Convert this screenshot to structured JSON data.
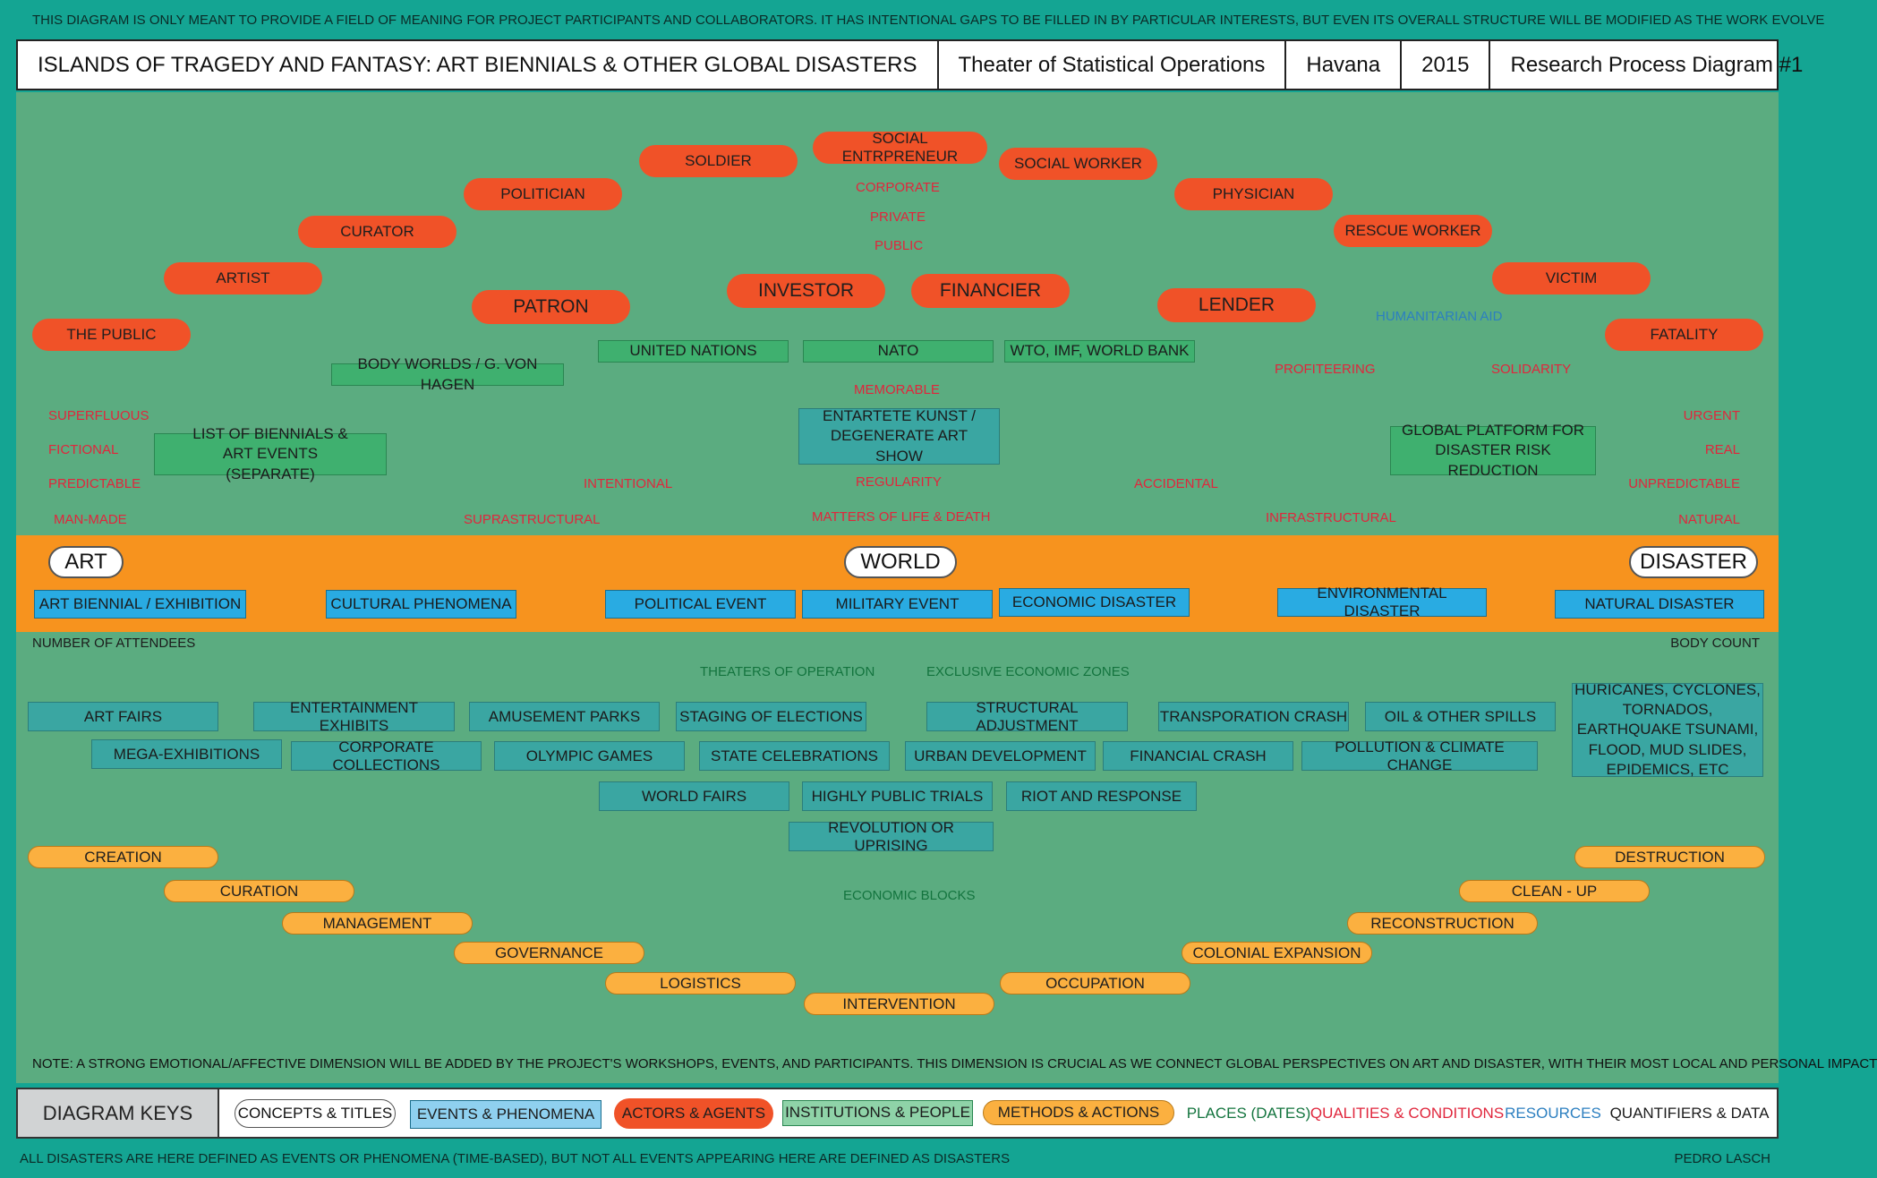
{
  "top_note": "THIS DIAGRAM IS ONLY MEANT TO PROVIDE A FIELD OF MEANING FOR PROJECT PARTICIPANTS AND COLLABORATORS. IT HAS INTENTIONAL GAPS TO BE FILLED IN BY PARTICULAR INTERESTS, BUT EVEN ITS OVERALL STRUCTURE WILL BE MODIFIED AS THE WORK EVOLVE",
  "header": {
    "title": "ISLANDS OF TRAGEDY AND FANTASY: ART BIENNIALS & OTHER GLOBAL DISASTERS",
    "theater": "Theater of Statistical Operations",
    "place": "Havana",
    "year": "2015",
    "diagram": "Research Process Diagram #1"
  },
  "actors": {
    "the_public": "THE PUBLIC",
    "artist": "ARTIST",
    "curator": "CURATOR",
    "politician": "POLITICIAN",
    "soldier": "SOLDIER",
    "social_entrepreneur": "SOCIAL ENTRPRENEUR",
    "social_worker": "SOCIAL WORKER",
    "physician": "PHYSICIAN",
    "rescue_worker": "RESCUE WORKER",
    "victim": "VICTIM",
    "fatality": "FATALITY",
    "patron": "PATRON",
    "investor": "INVESTOR",
    "financier": "FINANCIER",
    "lender": "LENDER"
  },
  "qualities": {
    "corporate": "CORPORATE",
    "private": "PRIVATE",
    "public": "PUBLIC",
    "memorable": "MEMORABLE",
    "regularity": "REGULARITY",
    "matters": "MATTERS OF LIFE & DEATH",
    "superfluous": "SUPERFLUOUS",
    "fictional": "FICTIONAL",
    "predictable": "PREDICTABLE",
    "man_made": "MAN-MADE",
    "intentional": "INTENTIONAL",
    "suprastructural": "SUPRASTRUCTURAL",
    "accidental": "ACCIDENTAL",
    "infrastructural": "INFRASTRUCTURAL",
    "profiteering": "PROFITEERING",
    "solidarity": "SOLIDARITY",
    "urgent": "URGENT",
    "real": "REAL",
    "unpredictable": "UNPREDICTABLE",
    "natural": "NATURAL"
  },
  "resources": {
    "humanitarian_aid": "HUMANITARIAN AID"
  },
  "institutions": {
    "united_nations": "UNITED NATIONS",
    "nato": "NATO",
    "wto": "WTO, IMF, WORLD BANK",
    "body_worlds": "BODY WORLDS / G. VON HAGEN",
    "biennials_list": "LIST OF BIENNIALS & ART EVENTS (SEPARATE)",
    "global_platform": "GLOBAL PLATFORM FOR DISASTER RISK REDUCTION"
  },
  "entartete": "ENTARTETE KUNST / DEGENERATE ART SHOW",
  "concepts": {
    "art": "ART",
    "world": "WORLD",
    "disaster": "DISASTER"
  },
  "events_main": {
    "art_biennial": "ART BIENNIAL  / EXHIBITION",
    "cultural": "CULTURAL PHENOMENA",
    "political": "POLITICAL EVENT",
    "military": "MILITARY EVENT",
    "economic": "ECONOMIC DISASTER",
    "environmental": "ENVIRONMENTAL DISASTER",
    "natural": "NATURAL DISASTER"
  },
  "quantifiers": {
    "attendees": "NUMBER OF ATTENDEES",
    "body_count": "BODY COUNT"
  },
  "places": {
    "theaters": "THEATERS OF OPERATION",
    "eez": "EXCLUSIVE ECONOMIC ZONES",
    "blocks": "ECONOMIC BLOCKS"
  },
  "phenomena": {
    "art_fairs": "ART FAIRS",
    "entertainment": "ENTERTAINMENT EXHIBITS",
    "amusement": "AMUSEMENT PARKS",
    "elections": "STAGING OF ELECTIONS",
    "structural": "STRUCTURAL ADJUSTMENT",
    "transport": "TRANSPORATION CRASH",
    "oil": "OIL & OTHER SPILLS",
    "mega": "MEGA-EXHIBITIONS",
    "corporate": "CORPORATE COLLECTIONS",
    "olympic": "OLYMPIC GAMES",
    "state": "STATE CELEBRATIONS",
    "urban": "URBAN DEVELOPMENT",
    "financial": "FINANCIAL CRASH",
    "pollution": "POLLUTION & CLIMATE CHANGE",
    "world_fairs": "WORLD FAIRS",
    "trials": "HIGHLY PUBLIC TRIALS",
    "riot": "RIOT AND RESPONSE",
    "revolution": "REVOLUTION OR UPRISING",
    "hurricanes": "HURICANES, CYCLONES, TORNADOS, EARTHQUAKE TSUNAMI, FLOOD, MUD SLIDES, EPIDEMICS, ETC"
  },
  "methods": {
    "creation": "CREATION",
    "curation": "CURATION",
    "management": "MANAGEMENT",
    "governance": "GOVERNANCE",
    "logistics": "LOGISTICS",
    "intervention": "INTERVENTION",
    "occupation": "OCCUPATION",
    "colonial": "COLONIAL EXPANSION",
    "reconstruction": "RECONSTRUCTION",
    "cleanup": "CLEAN - UP",
    "destruction": "DESTRUCTION"
  },
  "bottom_note": "NOTE: A STRONG EMOTIONAL/AFFECTIVE DIMENSION WILL BE ADDED BY THE PROJECT'S WORKSHOPS, EVENTS, AND PARTICIPANTS. THIS DIMENSION IS CRUCIAL AS WE CONNECT GLOBAL PERSPECTIVES ON ART AND DISASTER, WITH THEIR MOST LOCAL AND PERSONAL IMPACT",
  "keys": {
    "title": "DIAGRAM KEYS",
    "concepts": "CONCEPTS & TITLES",
    "events": "EVENTS & PHENOMENA",
    "actors": "ACTORS & AGENTS",
    "institutions": "INSTITUTIONS & PEOPLE",
    "methods": "METHODS & ACTIONS",
    "places": "PLACES (DATES)",
    "qualities": "QUALITIES & CONDITIONS",
    "resources": "RESOURCES",
    "quantifiers": "QUANTIFIERS & DATA"
  },
  "footer": {
    "left": "ALL DISASTERS ARE HERE DEFINED AS EVENTS OR PHENOMENA (TIME-BASED), BUT NOT ALL EVENTS APPEARING HERE ARE DEFINED AS DISASTERS",
    "right": "PEDRO LASCH"
  },
  "colors": {
    "background": "#14a593",
    "field": "#5bac80",
    "band": "#f7931e",
    "actor": "#f05228",
    "method": "#fbb040",
    "event": "#29abe2",
    "phenomenon": "#3aa6a2",
    "institution": "#3fb06f",
    "quality": "#e0263c",
    "place": "#13743e",
    "resource": "#2c7fc0"
  }
}
